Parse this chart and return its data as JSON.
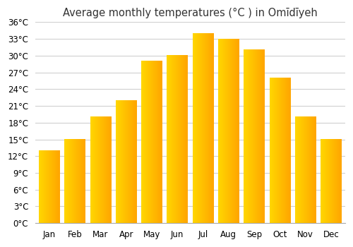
{
  "months": [
    "Jan",
    "Feb",
    "Mar",
    "Apr",
    "May",
    "Jun",
    "Jul",
    "Aug",
    "Sep",
    "Oct",
    "Nov",
    "Dec"
  ],
  "temperatures": [
    13,
    15,
    19,
    22,
    29,
    30,
    34,
    33,
    31,
    26,
    19,
    15
  ],
  "title": "Average monthly temperatures (°C ) in Omīdīyeh",
  "bar_color_left": "#FFD700",
  "bar_color_right": "#FFA500",
  "ylim": [
    0,
    36
  ],
  "ytick_step": 3,
  "background_color": "#ffffff",
  "grid_color": "#d0d0d0",
  "title_fontsize": 10.5,
  "tick_fontsize": 8.5,
  "bar_width": 0.82,
  "figsize": [
    5.0,
    3.5
  ],
  "dpi": 100
}
